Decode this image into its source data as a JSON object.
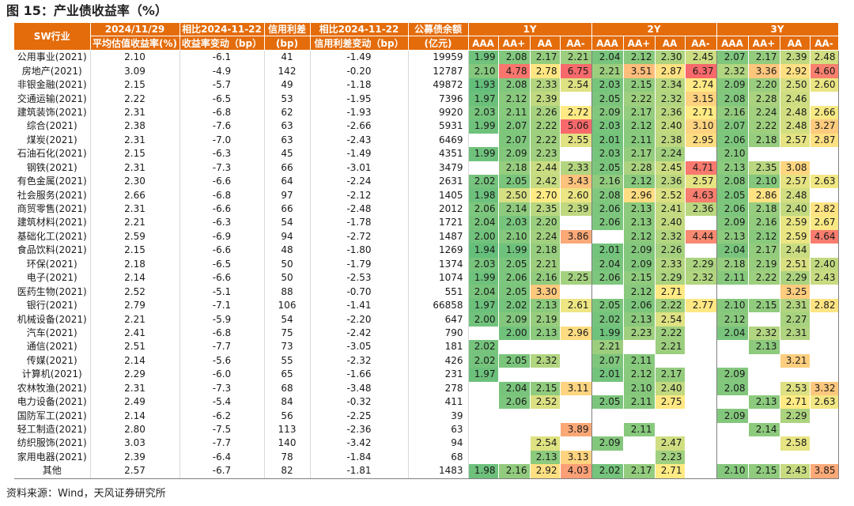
{
  "title": "图 15：产业债收益率（%）",
  "source": "资料来源：Wind，天风证券研究所",
  "headers": {
    "industry": "SW行业",
    "col1_top": "2024/11/29",
    "col1_bot": "平均估值收益率(%)",
    "col2_top": "相比2024-11-22",
    "col2_bot": "收益率变动（bp）",
    "col3_top": "信用利差",
    "col3_bot": "(bp)",
    "col4_top": "相比2024-11-22",
    "col4_bot": "信用利差变动（bp）",
    "col5_top": "公募债余额",
    "col5_bot": "(亿元)",
    "groups": [
      "1Y",
      "2Y",
      "3Y"
    ],
    "ratings": [
      "AAA",
      "AA+",
      "AA",
      "AA-"
    ]
  },
  "rows": [
    {
      "name": "公用事业(2021)",
      "yield": "2.10",
      "chg": "-6.1",
      "spread": "41",
      "spread_chg": "-1.49",
      "bal": "19959",
      "y1": [
        "1.99",
        "2.08",
        "2.17",
        "2.21"
      ],
      "y2": [
        "2.04",
        "2.12",
        "2.30",
        "2.45"
      ],
      "y3": [
        "2.07",
        "2.17",
        "2.39",
        "2.48"
      ]
    },
    {
      "name": "房地产(2021)",
      "yield": "3.09",
      "chg": "-4.9",
      "spread": "142",
      "spread_chg": "-0.20",
      "bal": "12787",
      "y1": [
        "2.10",
        "4.78",
        "2.78",
        "6.75"
      ],
      "y2": [
        "2.21",
        "3.51",
        "2.87",
        "6.37"
      ],
      "y3": [
        "2.32",
        "3.36",
        "2.92",
        "4.60"
      ]
    },
    {
      "name": "非银金融(2021)",
      "yield": "2.15",
      "chg": "-5.7",
      "spread": "49",
      "spread_chg": "-1.18",
      "bal": "49872",
      "y1": [
        "1.93",
        "2.08",
        "2.33",
        "2.54"
      ],
      "y2": [
        "2.03",
        "2.15",
        "2.34",
        "2.74"
      ],
      "y3": [
        "2.09",
        "2.20",
        "2.50",
        "2.60"
      ]
    },
    {
      "name": "交通运输(2021)",
      "yield": "2.22",
      "chg": "-6.5",
      "spread": "53",
      "spread_chg": "-1.95",
      "bal": "7396",
      "y1": [
        "1.97",
        "2.12",
        "2.39",
        ""
      ],
      "y2": [
        "2.05",
        "2.22",
        "2.32",
        "3.15"
      ],
      "y3": [
        "2.08",
        "2.28",
        "2.46",
        ""
      ]
    },
    {
      "name": "建筑装饰(2021)",
      "yield": "2.31",
      "chg": "-6.8",
      "spread": "62",
      "spread_chg": "-1.93",
      "bal": "9920",
      "y1": [
        "2.03",
        "2.11",
        "2.26",
        "2.72"
      ],
      "y2": [
        "2.09",
        "2.17",
        "2.36",
        "2.71"
      ],
      "y3": [
        "2.16",
        "2.24",
        "2.48",
        "2.66"
      ]
    },
    {
      "name": "综合(2021)",
      "yield": "2.38",
      "chg": "-7.6",
      "spread": "63",
      "spread_chg": "-2.66",
      "bal": "5931",
      "y1": [
        "1.99",
        "2.07",
        "2.22",
        "5.06"
      ],
      "y2": [
        "2.03",
        "2.12",
        "2.40",
        "3.10"
      ],
      "y3": [
        "2.07",
        "2.22",
        "2.48",
        "3.27"
      ]
    },
    {
      "name": "煤炭(2021)",
      "yield": "2.31",
      "chg": "-7.0",
      "spread": "63",
      "spread_chg": "-2.43",
      "bal": "6469",
      "y1": [
        "",
        "2.07",
        "2.22",
        "2.55"
      ],
      "y2": [
        "2.01",
        "2.11",
        "2.38",
        "2.95"
      ],
      "y3": [
        "2.06",
        "2.18",
        "2.57",
        "2.87"
      ]
    },
    {
      "name": "石油石化(2021)",
      "yield": "2.15",
      "chg": "-6.3",
      "spread": "45",
      "spread_chg": "-1.49",
      "bal": "4351",
      "y1": [
        "1.99",
        "2.09",
        "2.23",
        ""
      ],
      "y2": [
        "2.03",
        "2.17",
        "2.24",
        ""
      ],
      "y3": [
        "2.10",
        "",
        "",
        ""
      ]
    },
    {
      "name": "钢铁(2021)",
      "yield": "2.31",
      "chg": "-7.3",
      "spread": "66",
      "spread_chg": "-3.01",
      "bal": "3479",
      "y1": [
        "",
        "2.18",
        "2.44",
        "2.33"
      ],
      "y2": [
        "2.05",
        "2.28",
        "2.45",
        "4.71"
      ],
      "y3": [
        "2.13",
        "2.35",
        "3.08",
        ""
      ]
    },
    {
      "name": "有色金属(2021)",
      "yield": "2.30",
      "chg": "-6.6",
      "spread": "64",
      "spread_chg": "-2.24",
      "bal": "2631",
      "y1": [
        "2.02",
        "2.05",
        "2.42",
        "3.43"
      ],
      "y2": [
        "2.16",
        "2.12",
        "2.36",
        "2.57"
      ],
      "y3": [
        "2.08",
        "2.10",
        "2.57",
        "2.63"
      ]
    },
    {
      "name": "社会服务(2021)",
      "yield": "2.66",
      "chg": "-6.8",
      "spread": "97",
      "spread_chg": "-2.12",
      "bal": "1405",
      "y1": [
        "1.98",
        "2.50",
        "2.70",
        "2.60"
      ],
      "y2": [
        "2.08",
        "2.96",
        "2.52",
        "4.63"
      ],
      "y3": [
        "2.05",
        "2.86",
        "2.48",
        ""
      ]
    },
    {
      "name": "商贸零售(2021)",
      "yield": "2.31",
      "chg": "-6.6",
      "spread": "66",
      "spread_chg": "-2.48",
      "bal": "2012",
      "y1": [
        "2.06",
        "2.14",
        "2.35",
        "2.39"
      ],
      "y2": [
        "2.06",
        "2.13",
        "2.41",
        "2.36"
      ],
      "y3": [
        "2.06",
        "2.18",
        "2.40",
        "2.82"
      ]
    },
    {
      "name": "建筑材料(2021)",
      "yield": "2.21",
      "chg": "-6.3",
      "spread": "54",
      "spread_chg": "-1.78",
      "bal": "1721",
      "y1": [
        "2.04",
        "2.03",
        "2.20",
        ""
      ],
      "y2": [
        "2.06",
        "2.13",
        "2.40",
        ""
      ],
      "y3": [
        "2.09",
        "2.16",
        "2.59",
        "2.67"
      ]
    },
    {
      "name": "基础化工(2021)",
      "yield": "2.59",
      "chg": "-6.9",
      "spread": "94",
      "spread_chg": "-2.72",
      "bal": "1487",
      "y1": [
        "2.00",
        "2.10",
        "2.24",
        "3.86"
      ],
      "y2": [
        "",
        "2.12",
        "2.32",
        "4.44"
      ],
      "y3": [
        "2.13",
        "2.12",
        "2.59",
        "4.64"
      ]
    },
    {
      "name": "食品饮料(2021)",
      "yield": "2.15",
      "chg": "-6.6",
      "spread": "48",
      "spread_chg": "-1.80",
      "bal": "1269",
      "y1": [
        "1.94",
        "1.99",
        "2.18",
        ""
      ],
      "y2": [
        "2.01",
        "2.09",
        "2.26",
        ""
      ],
      "y3": [
        "2.04",
        "2.17",
        "2.44",
        ""
      ]
    },
    {
      "name": "环保(2021)",
      "yield": "2.18",
      "chg": "-6.5",
      "spread": "50",
      "spread_chg": "-1.79",
      "bal": "1374",
      "y1": [
        "2.03",
        "2.05",
        "2.21",
        ""
      ],
      "y2": [
        "2.04",
        "2.09",
        "2.33",
        "2.29"
      ],
      "y3": [
        "2.18",
        "2.19",
        "2.51",
        "2.40"
      ]
    },
    {
      "name": "电子(2021)",
      "yield": "2.14",
      "chg": "-6.6",
      "spread": "50",
      "spread_chg": "-2.53",
      "bal": "1074",
      "y1": [
        "1.99",
        "2.06",
        "2.16",
        "2.25"
      ],
      "y2": [
        "2.06",
        "2.15",
        "2.29",
        "2.32"
      ],
      "y3": [
        "2.11",
        "2.22",
        "2.29",
        "2.43"
      ]
    },
    {
      "name": "医药生物(2021)",
      "yield": "2.52",
      "chg": "-5.1",
      "spread": "88",
      "spread_chg": "-0.70",
      "bal": "551",
      "y1": [
        "2.04",
        "2.05",
        "3.30",
        ""
      ],
      "y2": [
        "",
        "2.12",
        "2.71",
        ""
      ],
      "y3": [
        "",
        "",
        "3.25",
        ""
      ]
    },
    {
      "name": "银行(2021)",
      "yield": "2.79",
      "chg": "-7.1",
      "spread": "106",
      "spread_chg": "-1.41",
      "bal": "66858",
      "y1": [
        "1.97",
        "2.02",
        "2.13",
        "2.61"
      ],
      "y2": [
        "2.05",
        "2.06",
        "2.22",
        "2.77"
      ],
      "y3": [
        "2.10",
        "2.15",
        "2.31",
        "2.82"
      ]
    },
    {
      "name": "机械设备(2021)",
      "yield": "2.21",
      "chg": "-5.9",
      "spread": "54",
      "spread_chg": "-2.20",
      "bal": "647",
      "y1": [
        "2.00",
        "2.09",
        "2.19",
        ""
      ],
      "y2": [
        "2.02",
        "2.13",
        "2.54",
        ""
      ],
      "y3": [
        "2.12",
        "",
        "2.27",
        ""
      ]
    },
    {
      "name": "汽车(2021)",
      "yield": "2.41",
      "chg": "-6.8",
      "spread": "75",
      "spread_chg": "-2.42",
      "bal": "790",
      "y1": [
        "",
        "2.00",
        "2.13",
        "2.96"
      ],
      "y2": [
        "1.99",
        "2.23",
        "2.22",
        ""
      ],
      "y3": [
        "2.04",
        "2.32",
        "2.31",
        ""
      ]
    },
    {
      "name": "通信(2021)",
      "yield": "2.51",
      "chg": "-7.7",
      "spread": "73",
      "spread_chg": "-3.05",
      "bal": "181",
      "y1": [
        "2.02",
        "",
        "",
        ""
      ],
      "y2": [
        "2.21",
        "",
        "2.21",
        ""
      ],
      "y3": [
        "",
        "2.13",
        "",
        ""
      ]
    },
    {
      "name": "传媒(2021)",
      "yield": "2.14",
      "chg": "-5.6",
      "spread": "55",
      "spread_chg": "-2.32",
      "bal": "426",
      "y1": [
        "2.02",
        "2.05",
        "2.32",
        ""
      ],
      "y2": [
        "2.07",
        "2.11",
        "",
        ""
      ],
      "y3": [
        "",
        "",
        "3.21",
        ""
      ]
    },
    {
      "name": "计算机(2021)",
      "yield": "2.29",
      "chg": "-6.0",
      "spread": "65",
      "spread_chg": "-1.66",
      "bal": "231",
      "y1": [
        "1.97",
        "",
        "",
        ""
      ],
      "y2": [
        "2.01",
        "2.12",
        "2.17",
        ""
      ],
      "y3": [
        "2.09",
        "",
        "",
        ""
      ]
    },
    {
      "name": "农林牧渔(2021)",
      "yield": "2.31",
      "chg": "-7.3",
      "spread": "68",
      "spread_chg": "-3.48",
      "bal": "278",
      "y1": [
        "",
        "2.04",
        "2.15",
        "3.11"
      ],
      "y2": [
        "",
        "2.10",
        "2.40",
        ""
      ],
      "y3": [
        "2.08",
        "",
        "2.53",
        "3.32"
      ]
    },
    {
      "name": "电力设备(2021)",
      "yield": "2.49",
      "chg": "-5.4",
      "spread": "84",
      "spread_chg": "-0.32",
      "bal": "411",
      "y1": [
        "",
        "2.06",
        "2.52",
        ""
      ],
      "y2": [
        "2.05",
        "2.11",
        "2.75",
        ""
      ],
      "y3": [
        "",
        "2.13",
        "2.71",
        "2.63"
      ]
    },
    {
      "name": "国防军工(2021)",
      "yield": "2.14",
      "chg": "-6.2",
      "spread": "56",
      "spread_chg": "-2.25",
      "bal": "39",
      "y1": [
        "",
        "",
        "",
        ""
      ],
      "y2": [
        "",
        "",
        "",
        ""
      ],
      "y3": [
        "2.09",
        "",
        "2.29",
        ""
      ]
    },
    {
      "name": "轻工制造(2021)",
      "yield": "2.80",
      "chg": "-7.5",
      "spread": "113",
      "spread_chg": "-2.36",
      "bal": "63",
      "y1": [
        "",
        "",
        "",
        "3.89"
      ],
      "y2": [
        "",
        "2.11",
        "",
        ""
      ],
      "y3": [
        "",
        "2.14",
        "",
        ""
      ]
    },
    {
      "name": "纺织服饰(2021)",
      "yield": "3.03",
      "chg": "-7.7",
      "spread": "140",
      "spread_chg": "-3.42",
      "bal": "94",
      "y1": [
        "",
        "",
        "2.54",
        ""
      ],
      "y2": [
        "2.09",
        "",
        "2.47",
        ""
      ],
      "y3": [
        "",
        "",
        "2.58",
        ""
      ]
    },
    {
      "name": "家用电器(2021)",
      "yield": "2.39",
      "chg": "-6.4",
      "spread": "78",
      "spread_chg": "-1.84",
      "bal": "68",
      "y1": [
        "",
        "",
        "2.13",
        "3.13"
      ],
      "y2": [
        "",
        "",
        "2.23",
        ""
      ],
      "y3": [
        "",
        "",
        "",
        ""
      ]
    },
    {
      "name": "其他",
      "yield": "2.57",
      "chg": "-6.7",
      "spread": "82",
      "spread_chg": "-1.81",
      "bal": "1483",
      "y1": [
        "1.98",
        "2.16",
        "2.92",
        "4.03"
      ],
      "y2": [
        "2.02",
        "2.17",
        "2.71",
        ""
      ],
      "y3": [
        "2.10",
        "2.15",
        "2.43",
        "3.85"
      ]
    }
  ]
}
